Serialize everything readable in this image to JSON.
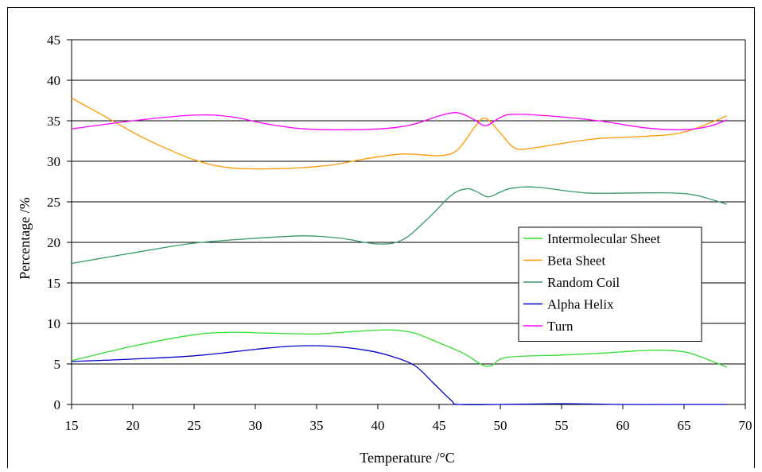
{
  "chart_data": {
    "type": "line",
    "xlabel": "Temperature /°C",
    "ylabel": "Percentage /%",
    "xlim": [
      15,
      70
    ],
    "ylim": [
      0,
      45
    ],
    "x_ticks": [
      "15",
      "20",
      "25",
      "30",
      "35",
      "40",
      "45",
      "50",
      "55",
      "60",
      "65",
      "70"
    ],
    "y_ticks": [
      "0",
      "5",
      "10",
      "15",
      "20",
      "25",
      "30",
      "35",
      "40",
      "45"
    ],
    "grid": "horizontal",
    "legend_position": "right",
    "series": [
      {
        "name": "Intermolecular Sheet",
        "color": "#33dd33",
        "points": [
          [
            15,
            5.4
          ],
          [
            20,
            7.2
          ],
          [
            25,
            8.6
          ],
          [
            28,
            8.9
          ],
          [
            31,
            8.8
          ],
          [
            35,
            8.7
          ],
          [
            38,
            9.0
          ],
          [
            41,
            9.2
          ],
          [
            43,
            8.8
          ],
          [
            45,
            7.6
          ],
          [
            47,
            6.3
          ],
          [
            48.5,
            4.9
          ],
          [
            49.3,
            4.8
          ],
          [
            50.5,
            5.8
          ],
          [
            55,
            6.1
          ],
          [
            58,
            6.3
          ],
          [
            61,
            6.6
          ],
          [
            63,
            6.7
          ],
          [
            65,
            6.5
          ],
          [
            66.5,
            5.8
          ],
          [
            68.5,
            4.6
          ]
        ]
      },
      {
        "name": "Beta Sheet",
        "color": "#ff9900",
        "points": [
          [
            15,
            37.8
          ],
          [
            18,
            35.3
          ],
          [
            21,
            32.8
          ],
          [
            25,
            30.2
          ],
          [
            28,
            29.2
          ],
          [
            32,
            29.1
          ],
          [
            36,
            29.5
          ],
          [
            39,
            30.3
          ],
          [
            42,
            30.9
          ],
          [
            45,
            30.7
          ],
          [
            46.5,
            31.4
          ],
          [
            48,
            34.4
          ],
          [
            48.8,
            35.3
          ],
          [
            50,
            33.5
          ],
          [
            51,
            31.8
          ],
          [
            52,
            31.5
          ],
          [
            55,
            32.2
          ],
          [
            58,
            32.8
          ],
          [
            62,
            33.1
          ],
          [
            65,
            33.6
          ],
          [
            68.5,
            35.6
          ]
        ]
      },
      {
        "name": "Random Coil",
        "color": "#339966",
        "points": [
          [
            15,
            17.4
          ],
          [
            20,
            18.7
          ],
          [
            25,
            19.9
          ],
          [
            30,
            20.5
          ],
          [
            34,
            20.8
          ],
          [
            37,
            20.5
          ],
          [
            40,
            19.8
          ],
          [
            42,
            20.3
          ],
          [
            44,
            22.8
          ],
          [
            46,
            25.8
          ],
          [
            47.2,
            26.6
          ],
          [
            48,
            26.3
          ],
          [
            49,
            25.6
          ],
          [
            50,
            26.2
          ],
          [
            51,
            26.7
          ],
          [
            53,
            26.8
          ],
          [
            57,
            26.1
          ],
          [
            61,
            26.1
          ],
          [
            64,
            26.1
          ],
          [
            66,
            25.8
          ],
          [
            68.5,
            24.7
          ]
        ]
      },
      {
        "name": "Alpha Helix",
        "color": "#0000cc",
        "points": [
          [
            15,
            5.3
          ],
          [
            20,
            5.6
          ],
          [
            25,
            6.0
          ],
          [
            30,
            6.8
          ],
          [
            33,
            7.2
          ],
          [
            36,
            7.2
          ],
          [
            39,
            6.7
          ],
          [
            41,
            6.0
          ],
          [
            43,
            4.8
          ],
          [
            44.5,
            2.7
          ],
          [
            46,
            0.5
          ],
          [
            46.6,
            0.0
          ],
          [
            50,
            0.0
          ],
          [
            55,
            0.1
          ],
          [
            60,
            0.0
          ],
          [
            65,
            0.0
          ],
          [
            68.5,
            0.0
          ]
        ]
      },
      {
        "name": "Turn",
        "color": "#ff00ff",
        "points": [
          [
            15,
            34.0
          ],
          [
            20,
            35.0
          ],
          [
            25,
            35.7
          ],
          [
            28,
            35.5
          ],
          [
            31,
            34.6
          ],
          [
            34,
            34.0
          ],
          [
            38,
            33.9
          ],
          [
            41,
            34.1
          ],
          [
            43,
            34.6
          ],
          [
            45,
            35.6
          ],
          [
            46.5,
            36.0
          ],
          [
            47.8,
            35.2
          ],
          [
            48.8,
            34.4
          ],
          [
            50,
            35.4
          ],
          [
            51,
            35.8
          ],
          [
            54,
            35.6
          ],
          [
            58,
            35.0
          ],
          [
            62,
            34.1
          ],
          [
            65,
            33.9
          ],
          [
            67,
            34.3
          ],
          [
            68.5,
            35.1
          ]
        ]
      }
    ]
  }
}
